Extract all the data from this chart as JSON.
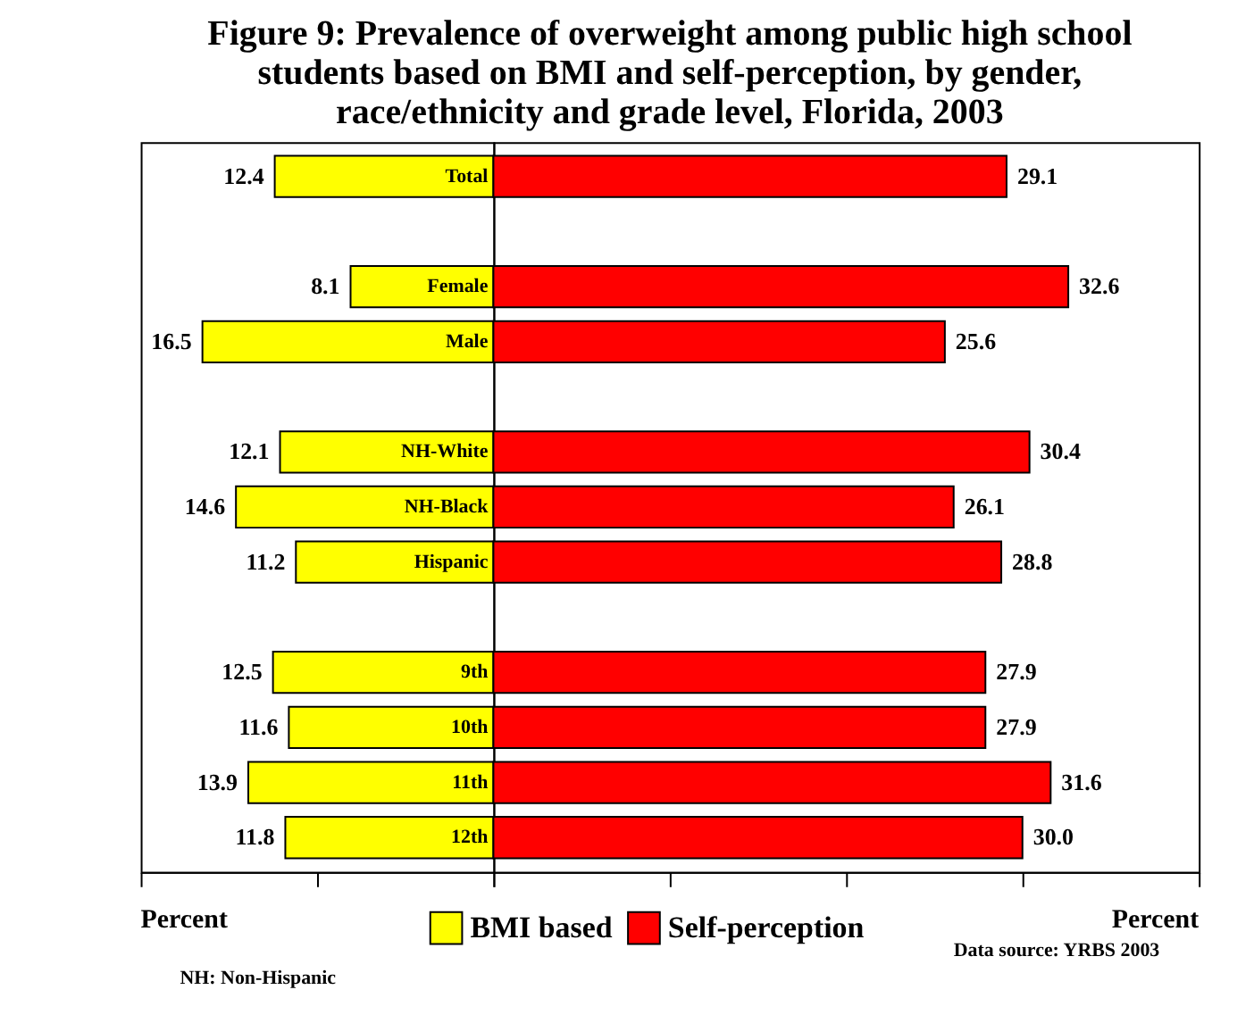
{
  "chart_data": [
    {
      "type": "bar",
      "orientation": "horizontal",
      "title": "Figure 9: Prevalence of overweight among public high school students based on BMI and self-perception, by gender, race/ethnicity and grade level, Florida, 2003",
      "categories": [
        "Total",
        null,
        "Female",
        "Male",
        null,
        "NH-White",
        "NH-Black",
        "Hispanic",
        null,
        "9th",
        "10th",
        "11th",
        "12th"
      ],
      "series": [
        {
          "name": "BMI based",
          "color": "#ffff00",
          "values": [
            12.4,
            null,
            8.1,
            16.5,
            null,
            12.1,
            14.6,
            11.2,
            null,
            12.5,
            11.6,
            13.9,
            11.8
          ],
          "value_labels": [
            "12.4",
            null,
            "8.1",
            "16.5",
            null,
            "12.1",
            "14.6",
            "11.2",
            null,
            "12.5",
            "11.6",
            "13.9",
            "11.8"
          ]
        }
      ],
      "xlim": [
        20,
        0
      ],
      "xticks": [
        20,
        10,
        0
      ],
      "tick_labels": false,
      "legend": "bottom",
      "annotations": [
        "Percent",
        "NH:  Non-Hispanic"
      ]
    },
    {
      "type": "bar",
      "orientation": "horizontal",
      "categories": [
        null,
        null,
        null,
        null,
        null,
        null,
        null,
        null,
        null,
        null,
        null,
        null,
        null
      ],
      "series": [
        {
          "name": "Self-perception",
          "color": "#ff0000",
          "values": [
            29.1,
            null,
            32.6,
            25.6,
            null,
            30.4,
            26.1,
            28.8,
            null,
            27.9,
            27.9,
            31.6,
            30.0
          ],
          "value_labels": [
            "29.1",
            null,
            "32.6",
            "25.6",
            null,
            "30.4",
            "26.1",
            "28.8",
            null,
            "27.9",
            "27.9",
            "31.6",
            "30.0"
          ]
        }
      ],
      "xlim": [
        0,
        40
      ],
      "xticks": [
        0,
        10,
        20,
        30,
        40
      ],
      "tick_labels": false,
      "legend": "bottom",
      "annotations": [
        "Percent",
        "Data source: YRBS 2003"
      ]
    }
  ]
}
